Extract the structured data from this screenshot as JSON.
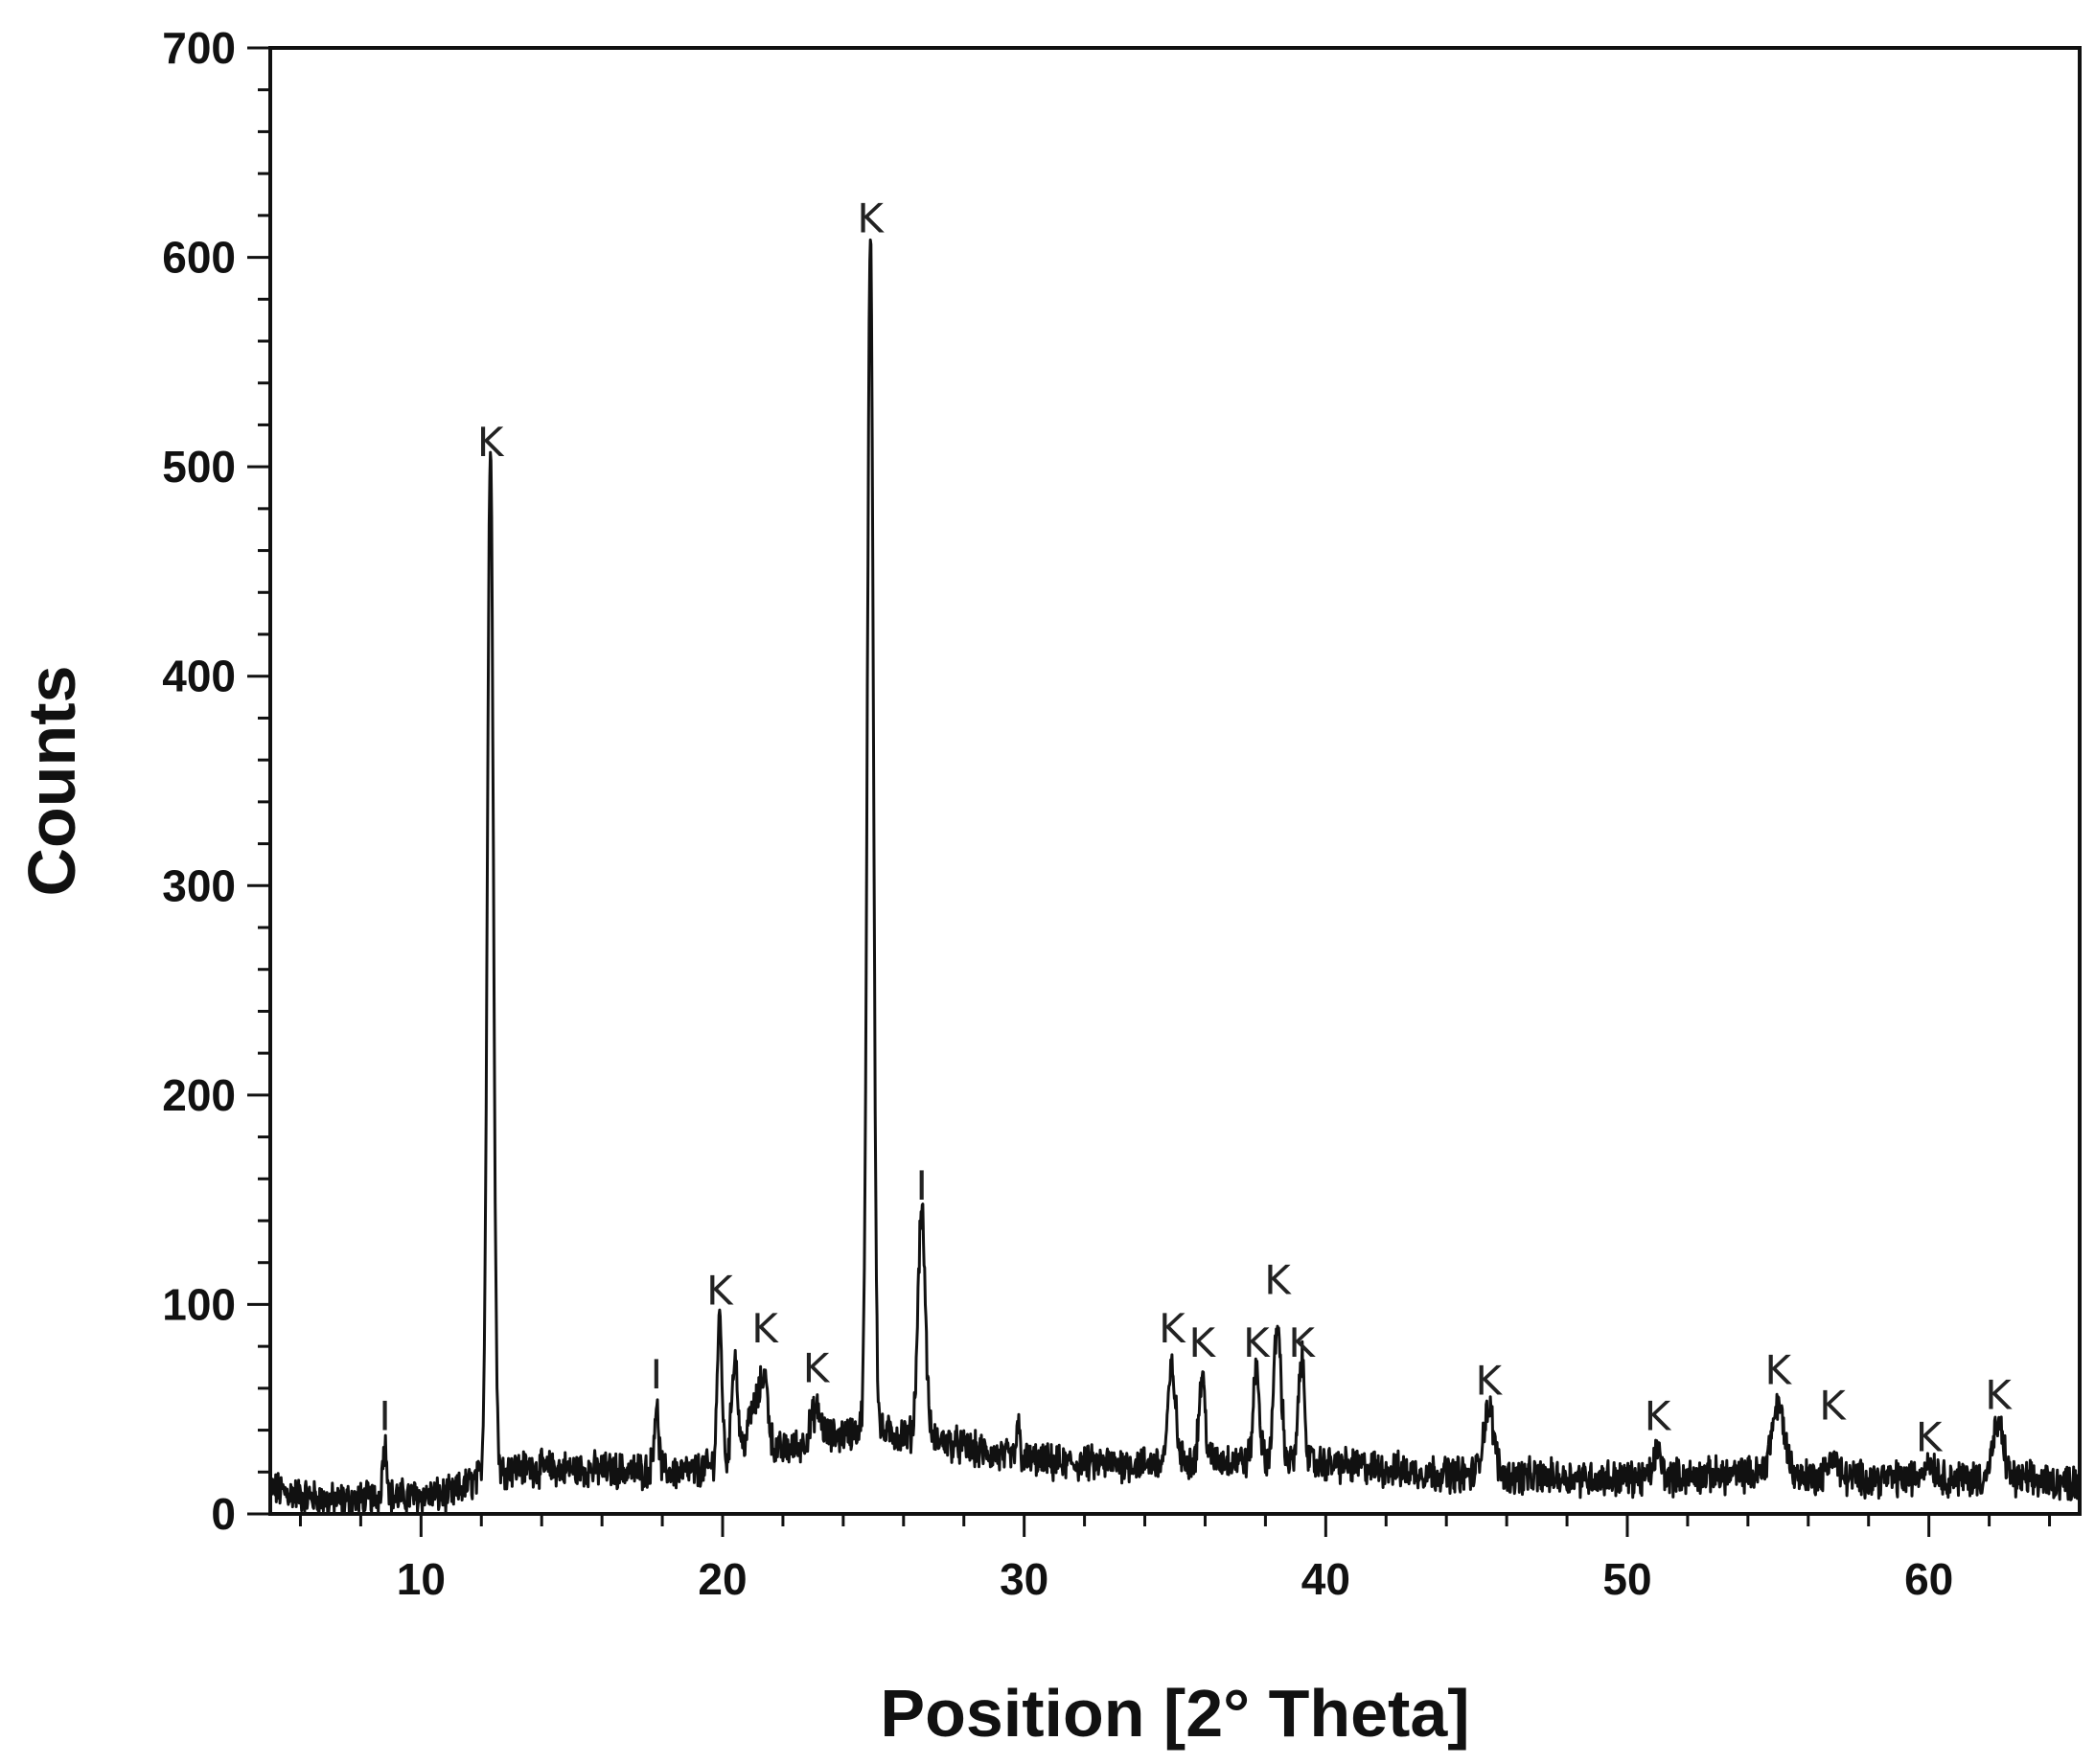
{
  "chart_data": {
    "type": "line",
    "title": "",
    "xlabel": "Position [2° Theta]",
    "ylabel": "Counts",
    "xlim": [
      5,
      65
    ],
    "ylim": [
      0,
      700
    ],
    "x_major_ticks": [
      10,
      20,
      30,
      40,
      50,
      60
    ],
    "x_minor_step": 2,
    "y_major_ticks": [
      0,
      100,
      200,
      300,
      400,
      500,
      600,
      700
    ],
    "y_minor_step": 20,
    "grid": false,
    "legend": "none",
    "line_color": "#111111",
    "baseline": [
      [
        5,
        12
      ],
      [
        7,
        6
      ],
      [
        9,
        8
      ],
      [
        11,
        9
      ],
      [
        12,
        18
      ],
      [
        13,
        22
      ],
      [
        16,
        21
      ],
      [
        19,
        20
      ],
      [
        20,
        24
      ],
      [
        23,
        34
      ],
      [
        24.5,
        40
      ],
      [
        27,
        36
      ],
      [
        29,
        28
      ],
      [
        31,
        24
      ],
      [
        34,
        24
      ],
      [
        36,
        26
      ],
      [
        40,
        24
      ],
      [
        43,
        20
      ],
      [
        46,
        18
      ],
      [
        50,
        17
      ],
      [
        54,
        19
      ],
      [
        58,
        17
      ],
      [
        62,
        17
      ],
      [
        65,
        15
      ]
    ],
    "peaks": [
      {
        "x": 8.8,
        "y": 25,
        "w": 0.08
      },
      {
        "x": 12.3,
        "y": 490,
        "w": 0.1
      },
      {
        "x": 17.8,
        "y": 30,
        "w": 0.08
      },
      {
        "x": 19.9,
        "y": 70,
        "w": 0.08
      },
      {
        "x": 20.4,
        "y": 50,
        "w": 0.1
      },
      {
        "x": 21.1,
        "y": 25,
        "w": 0.25
      },
      {
        "x": 21.4,
        "y": 25,
        "w": 0.12
      },
      {
        "x": 23.1,
        "y": 15,
        "w": 0.18
      },
      {
        "x": 24.9,
        "y": 575,
        "w": 0.1
      },
      {
        "x": 26.6,
        "y": 110,
        "w": 0.12
      },
      {
        "x": 29.8,
        "y": 15,
        "w": 0.06
      },
      {
        "x": 34.9,
        "y": 45,
        "w": 0.12
      },
      {
        "x": 35.9,
        "y": 40,
        "w": 0.1
      },
      {
        "x": 37.7,
        "y": 45,
        "w": 0.1
      },
      {
        "x": 38.4,
        "y": 65,
        "w": 0.12
      },
      {
        "x": 39.2,
        "y": 50,
        "w": 0.1
      },
      {
        "x": 45.4,
        "y": 32,
        "w": 0.18
      },
      {
        "x": 51.0,
        "y": 13,
        "w": 0.12
      },
      {
        "x": 55.0,
        "y": 33,
        "w": 0.22
      },
      {
        "x": 56.8,
        "y": 10,
        "w": 0.15
      },
      {
        "x": 60.0,
        "y": 8,
        "w": 0.2
      },
      {
        "x": 62.3,
        "y": 25,
        "w": 0.18
      }
    ],
    "annotations": [
      {
        "text": "I",
        "x": 8.8,
        "y": 40
      },
      {
        "text": "K",
        "x": 12.3,
        "y": 505
      },
      {
        "text": "I",
        "x": 17.8,
        "y": 60
      },
      {
        "text": "K",
        "x": 19.9,
        "y": 100
      },
      {
        "text": "K",
        "x": 21.4,
        "y": 82
      },
      {
        "text": "K",
        "x": 23.1,
        "y": 63
      },
      {
        "text": "K",
        "x": 24.9,
        "y": 612
      },
      {
        "text": "I",
        "x": 26.6,
        "y": 150
      },
      {
        "text": "K",
        "x": 34.9,
        "y": 82
      },
      {
        "text": "K",
        "x": 35.9,
        "y": 75
      },
      {
        "text": "K",
        "x": 37.7,
        "y": 75
      },
      {
        "text": "K",
        "x": 38.4,
        "y": 105
      },
      {
        "text": "K",
        "x": 39.2,
        "y": 75
      },
      {
        "text": "K",
        "x": 45.4,
        "y": 57
      },
      {
        "text": "K",
        "x": 51.0,
        "y": 40
      },
      {
        "text": "K",
        "x": 55.0,
        "y": 62
      },
      {
        "text": "K",
        "x": 56.8,
        "y": 45
      },
      {
        "text": "K",
        "x": 60.0,
        "y": 30
      },
      {
        "text": "K",
        "x": 62.3,
        "y": 50
      }
    ]
  }
}
